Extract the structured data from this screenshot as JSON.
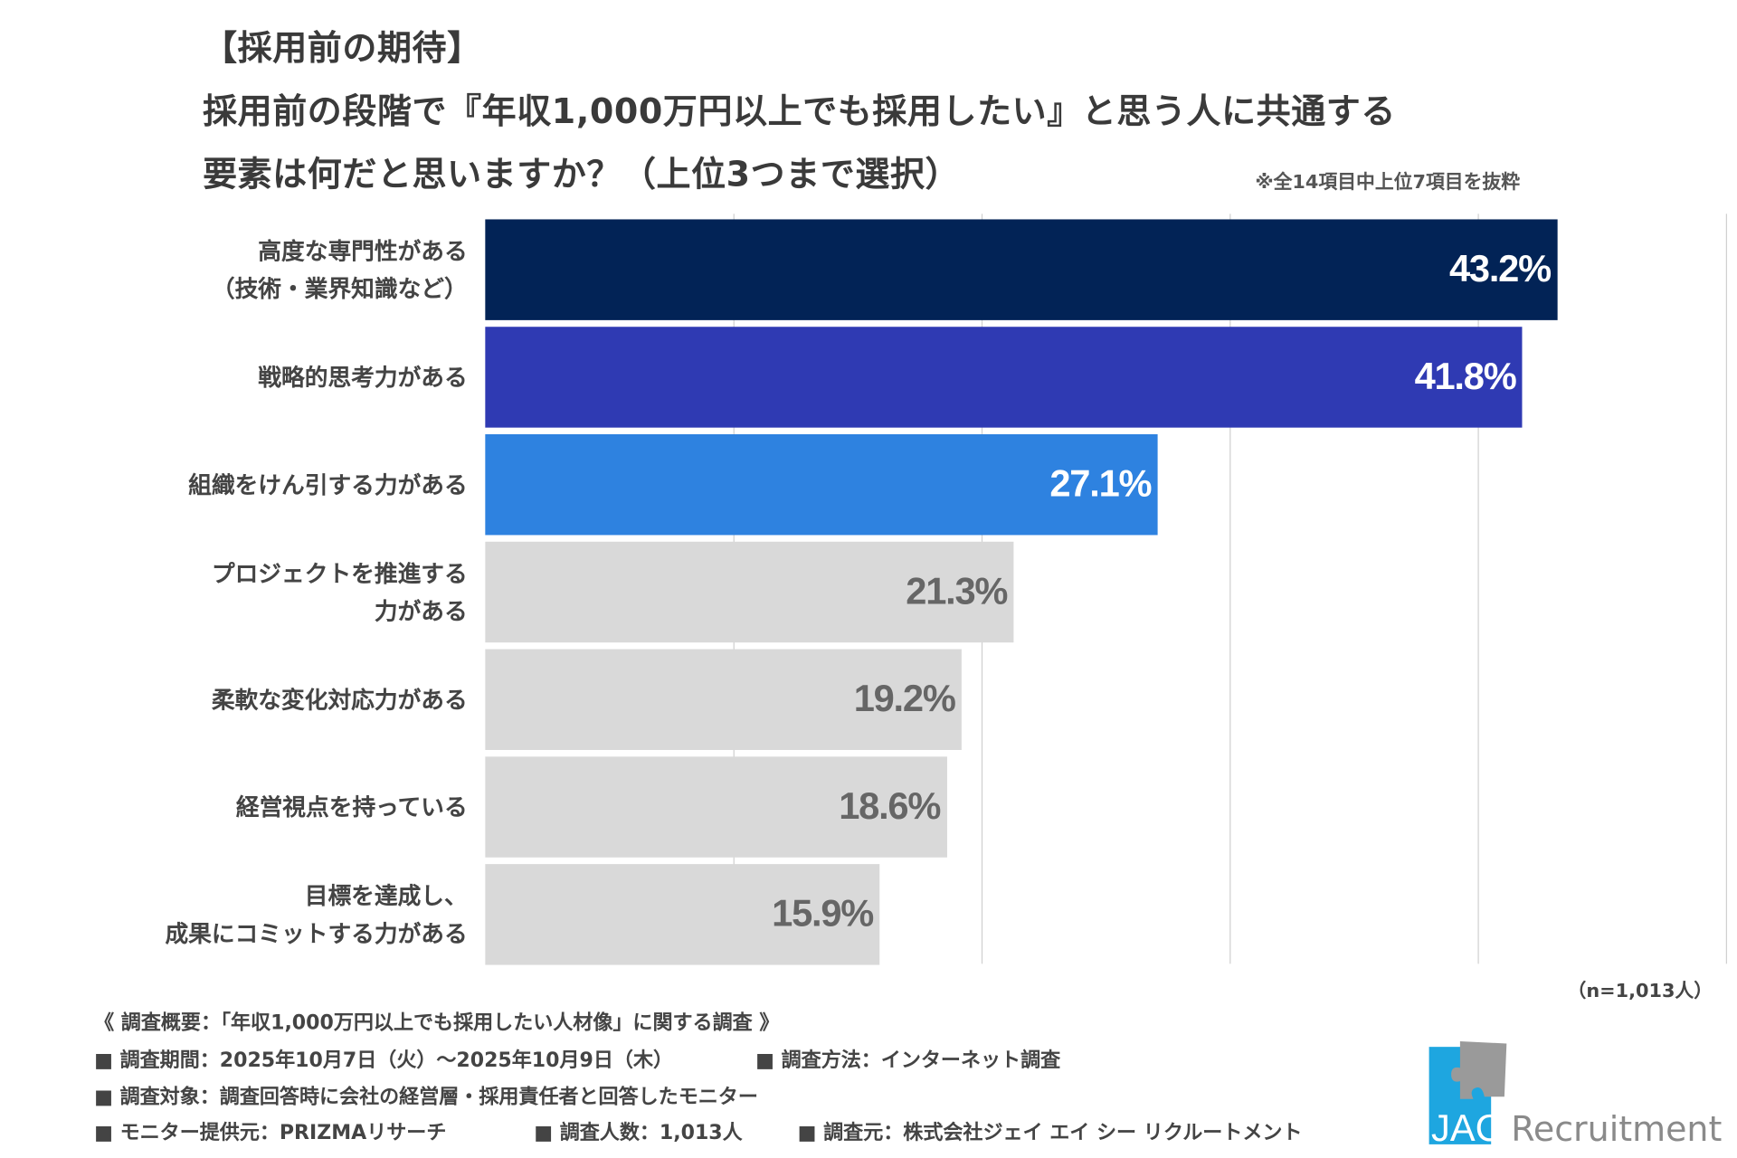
{
  "header": {
    "title_line1": "【採用前の期待】",
    "title_line2": "採用前の段階で『年収1,000万円以上でも採用したい』と思う人に共通する",
    "title_line3": "要素は何だと思いますか？（上位3つまで選択）",
    "note": "※全14項目中上位7項目を抜粋"
  },
  "chart_data": {
    "type": "bar",
    "orientation": "horizontal",
    "categories": [
      "高度な専門性がある\n（技術・業界知識など）",
      "戦略的思考力がある",
      "組織をけん引する力がある",
      "プロジェクトを推進する\n力がある",
      "柔軟な変化対応力がある",
      "経営視点を持っている",
      "目標を達成し、\n成果にコミットする力がある"
    ],
    "values": [
      43.2,
      41.8,
      27.1,
      21.3,
      19.2,
      18.6,
      15.9
    ],
    "data_labels": [
      "43.2%",
      "41.8%",
      "27.1%",
      "21.3%",
      "19.2%",
      "18.6%",
      "15.9%"
    ],
    "bar_colors": [
      "#022356",
      "#2f3ab3",
      "#2e82e0",
      "#d9d9d9",
      "#d9d9d9",
      "#d9d9d9",
      "#d9d9d9"
    ],
    "label_colors": [
      "#ffffff",
      "#ffffff",
      "#ffffff",
      "#666666",
      "#666666",
      "#666666",
      "#666666"
    ],
    "xlim": [
      0,
      50
    ],
    "grid": true,
    "gridline_values": [
      10,
      20,
      30,
      40,
      50
    ],
    "sample_note": "（n=1,013人）"
  },
  "footer": {
    "summary": "《 調査概要：「年収1,000万円以上でも採用したい人材像」に関する調査 》",
    "period": "■ 調査期間：2025年10月7日（火）〜2025年10月9日（木）",
    "method": "■ 調査方法：インターネット調査",
    "target": "■ 調査対象：調査回答時に会社の経営層・採用責任者と回答したモニター",
    "provider": "■ モニター提供元：PRIZMAリサーチ",
    "count": "■ 調査人数：1,013人",
    "source": "■ 調査元：株式会社ジェイ エイ シー リクルートメント"
  },
  "logo": {
    "text_jac": "JAC",
    "text_recruitment": "Recruitment",
    "blue": "#1ea6e0",
    "gray": "#9a9a9a"
  }
}
